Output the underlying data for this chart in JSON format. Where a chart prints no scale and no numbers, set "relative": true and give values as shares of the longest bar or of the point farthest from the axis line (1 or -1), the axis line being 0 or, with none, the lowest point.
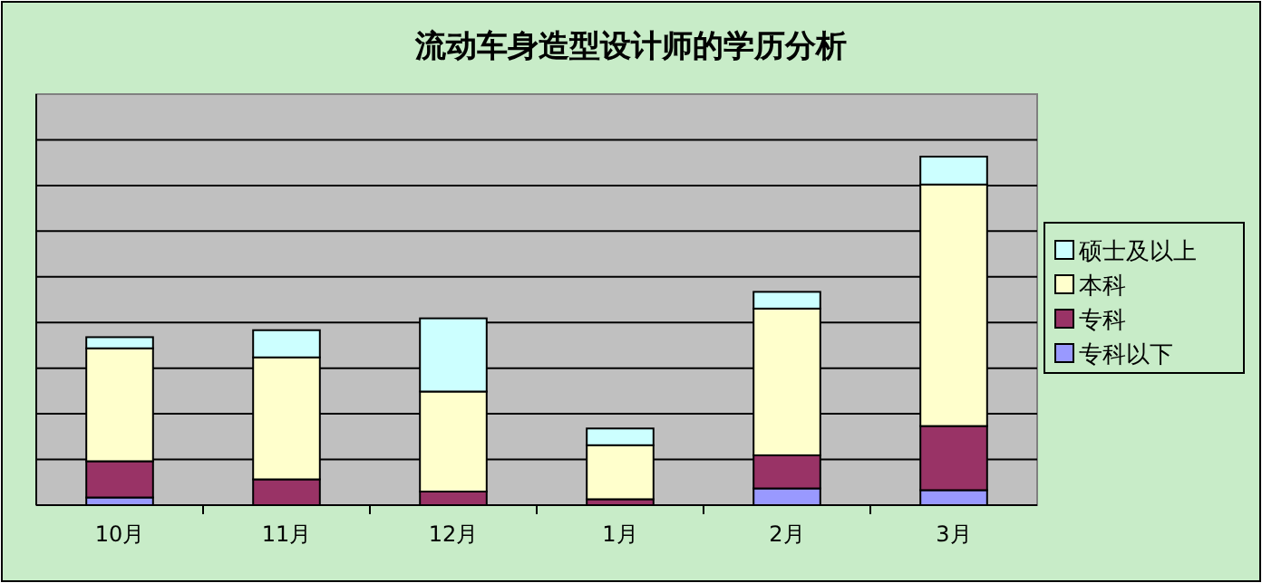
{
  "chart_data": {
    "type": "bar",
    "title": "流动车身造型设计师的学历分析",
    "stacked": true,
    "relative": true,
    "grid": "y",
    "legend": "right",
    "categories": [
      "10月",
      "11月",
      "12月",
      "1月",
      "2月",
      "3月"
    ],
    "series": [
      {
        "name": "专科以下",
        "color": "#9999ff",
        "values": [
          0.022,
          0,
          null,
          null,
          0.048,
          0.043
        ]
      },
      {
        "name": "专科",
        "color": "#993366",
        "values": [
          0.104,
          0.074,
          0.039,
          0.017,
          0.095,
          0.184
        ]
      },
      {
        "name": "本科",
        "color": "#ffffcc",
        "values": [
          0.324,
          0.35,
          0.287,
          0.155,
          0.421,
          0.693
        ]
      },
      {
        "name": "硕士及以上",
        "color": "#ccffff",
        "values": [
          0.032,
          0.078,
          0.21,
          0.048,
          0.048,
          0.08
        ]
      }
    ]
  }
}
